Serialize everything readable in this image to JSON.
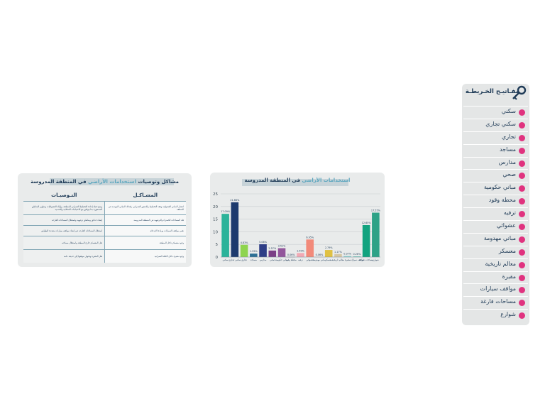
{
  "table": {
    "title_main": "مشاكل وتوصيات",
    "title_hl": " استخدامات الأراضي ",
    "title_tail": "في المنطقة المدروسة",
    "col_problems": "المشـاكـل",
    "col_recommendations": "التـوصيـات",
    "rows": [
      {
        "problem": "انتشار المباني العشوائية وفقد التخطيط والتدهور العمراني، وكذلك المباني المهدمة في المنطقة",
        "recommendation": "وضع خطة إعادة التخطيط العمراني للمنطقة، وإزالة العشوائيات وتطوير المناطق المتدهورة بما يتوافق مع الاحتياجات السكانية والخدمية"
      },
      {
        "problem": "قلة المساحات الخضراء والترفيهية في المنطقة المدروسة",
        "recommendation": "إنشاء حدائق ومناطق ترفيهية واستغلال المساحات الفارغة"
      },
      {
        "problem": "نقص مواقف السيارات وزيادة الازدحام",
        "recommendation": "استغلال المساحات الفارغة في إنشاء مواقف سيارات متعددة الطوابق"
      },
      {
        "problem": "وجود معسكر داخل المنطقة",
        "recommendation": "نقل المعسكر خارج المنطقة واستغلال مساحته"
      },
      {
        "problem": "وجود مقبرة داخل الكتلة العمرانية",
        "recommendation": "نقل المقبرة وتحويل موقعها إلى حديقة عامة"
      }
    ]
  },
  "chart_title": {
    "hl": "استخدامات الأراضي",
    "tail": " في المنطقة المدروسة"
  },
  "chart_data": {
    "type": "bar",
    "title": "استخدامات الأراضي في المنطقة المدروسة",
    "ylim": [
      0,
      25
    ],
    "yticks": [
      0,
      5,
      10,
      15,
      20,
      25
    ],
    "grid": true,
    "categories": [
      "سكني",
      "سكني تجاري",
      "تجاري",
      "مساجد",
      "مدارس",
      "صحي",
      "مباني حكومية",
      "محطة وقود",
      "ترفيه",
      "عشوائي",
      "مباني مهدومة",
      "معسكر",
      "معالم تاريخية",
      "مقبرة",
      "مواقف سيارات",
      "مساحات فارغة",
      "شوارع"
    ],
    "values": [
      17.09,
      21.66,
      4.83,
      1.35,
      5.06,
      2.57,
      3.51,
      0.06,
      1.59,
      6.95,
      0.06,
      2.79,
      1.17,
      0.37,
      0.26,
      12.65,
      17.55
    ],
    "labels": [
      "17.09%",
      "21.66%",
      "4.83%",
      "1.35%",
      "5.06%",
      "2.57%",
      "3.51%",
      "0.06%",
      "1.59%",
      "6.95%",
      "0.06%",
      "2.79%",
      "1.17%",
      "0.37%",
      "0.26%",
      "12.65%",
      "17.55%"
    ],
    "colors": [
      "#2bb39a",
      "#1d3a6e",
      "#8ed44e",
      "#2c6f95",
      "#2e3d86",
      "#7b3f86",
      "#93579c",
      "#66707a",
      "#f2a9b4",
      "#f28a7a",
      "#e7c6b3",
      "#e0c143",
      "#d6c7a3",
      "#83cfcf",
      "#6cc7b9",
      "#12a37f",
      "#2ea287"
    ]
  },
  "legend": {
    "title": "مفـاتيـح الخـريطـة",
    "swatch_color": "#e0337f",
    "items": [
      "سكني",
      "سكني تجاري",
      "تجاري",
      "مساجد",
      "مدارس",
      "صحي",
      "مباني حكومية",
      "محطة وقود",
      "ترفيه",
      "عشوائي",
      "مباني مهدومة",
      "معسكر",
      "معالم تاريخية",
      "مقبرة",
      "مواقف سيارات",
      "مساحات فارغة",
      "شوارع"
    ]
  }
}
